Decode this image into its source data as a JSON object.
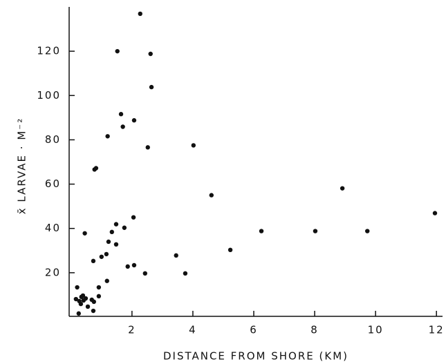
{
  "chart_data": {
    "type": "scatter",
    "x_label": "DISTANCE FROM SHORE (KM)",
    "y_label": "x̄ LARVAE · M⁻²",
    "color": "#111111",
    "xlim": [
      0,
      12.2
    ],
    "ylim": [
      0,
      140
    ],
    "xticks": [
      2,
      4,
      6,
      8,
      10,
      12
    ],
    "yticks": [
      20,
      40,
      60,
      80,
      100,
      120
    ],
    "x": [
      2.27,
      1.52,
      2.61,
      2.64,
      1.64,
      2.07,
      1.7,
      1.2,
      2.52,
      4.02,
      0.77,
      0.82,
      4.61,
      8.91,
      0.45,
      1.48,
      1.75,
      1.34,
      2.05,
      1.48,
      1.23,
      1.16,
      1.0,
      0.73,
      1.86,
      2.07,
      2.43,
      1.18,
      0.91,
      0.91,
      0.68,
      0.75,
      0.55,
      0.73,
      0.2,
      0.16,
      0.27,
      0.34,
      0.39,
      0.41,
      0.32,
      0.25,
      0.48,
      5.23,
      6.25,
      3.75,
      3.45,
      8.02,
      9.73,
      11.95
    ],
    "values": [
      136.9,
      120,
      118.8,
      103.8,
      91.6,
      88.8,
      85.9,
      81.6,
      76.6,
      77.5,
      66.6,
      67.2,
      55,
      58.1,
      37.8,
      41.9,
      40.3,
      38.4,
      45,
      32.8,
      34,
      28.4,
      27.2,
      25.3,
      22.8,
      23.4,
      19.7,
      16.3,
      13.4,
      9.4,
      7.8,
      6.9,
      4.7,
      2.8,
      13.4,
      8.1,
      7.2,
      9.1,
      9.7,
      7.5,
      5.9,
      1.6,
      8.4,
      30.3,
      38.8,
      19.7,
      27.8,
      38.8,
      38.8,
      46.9
    ]
  }
}
